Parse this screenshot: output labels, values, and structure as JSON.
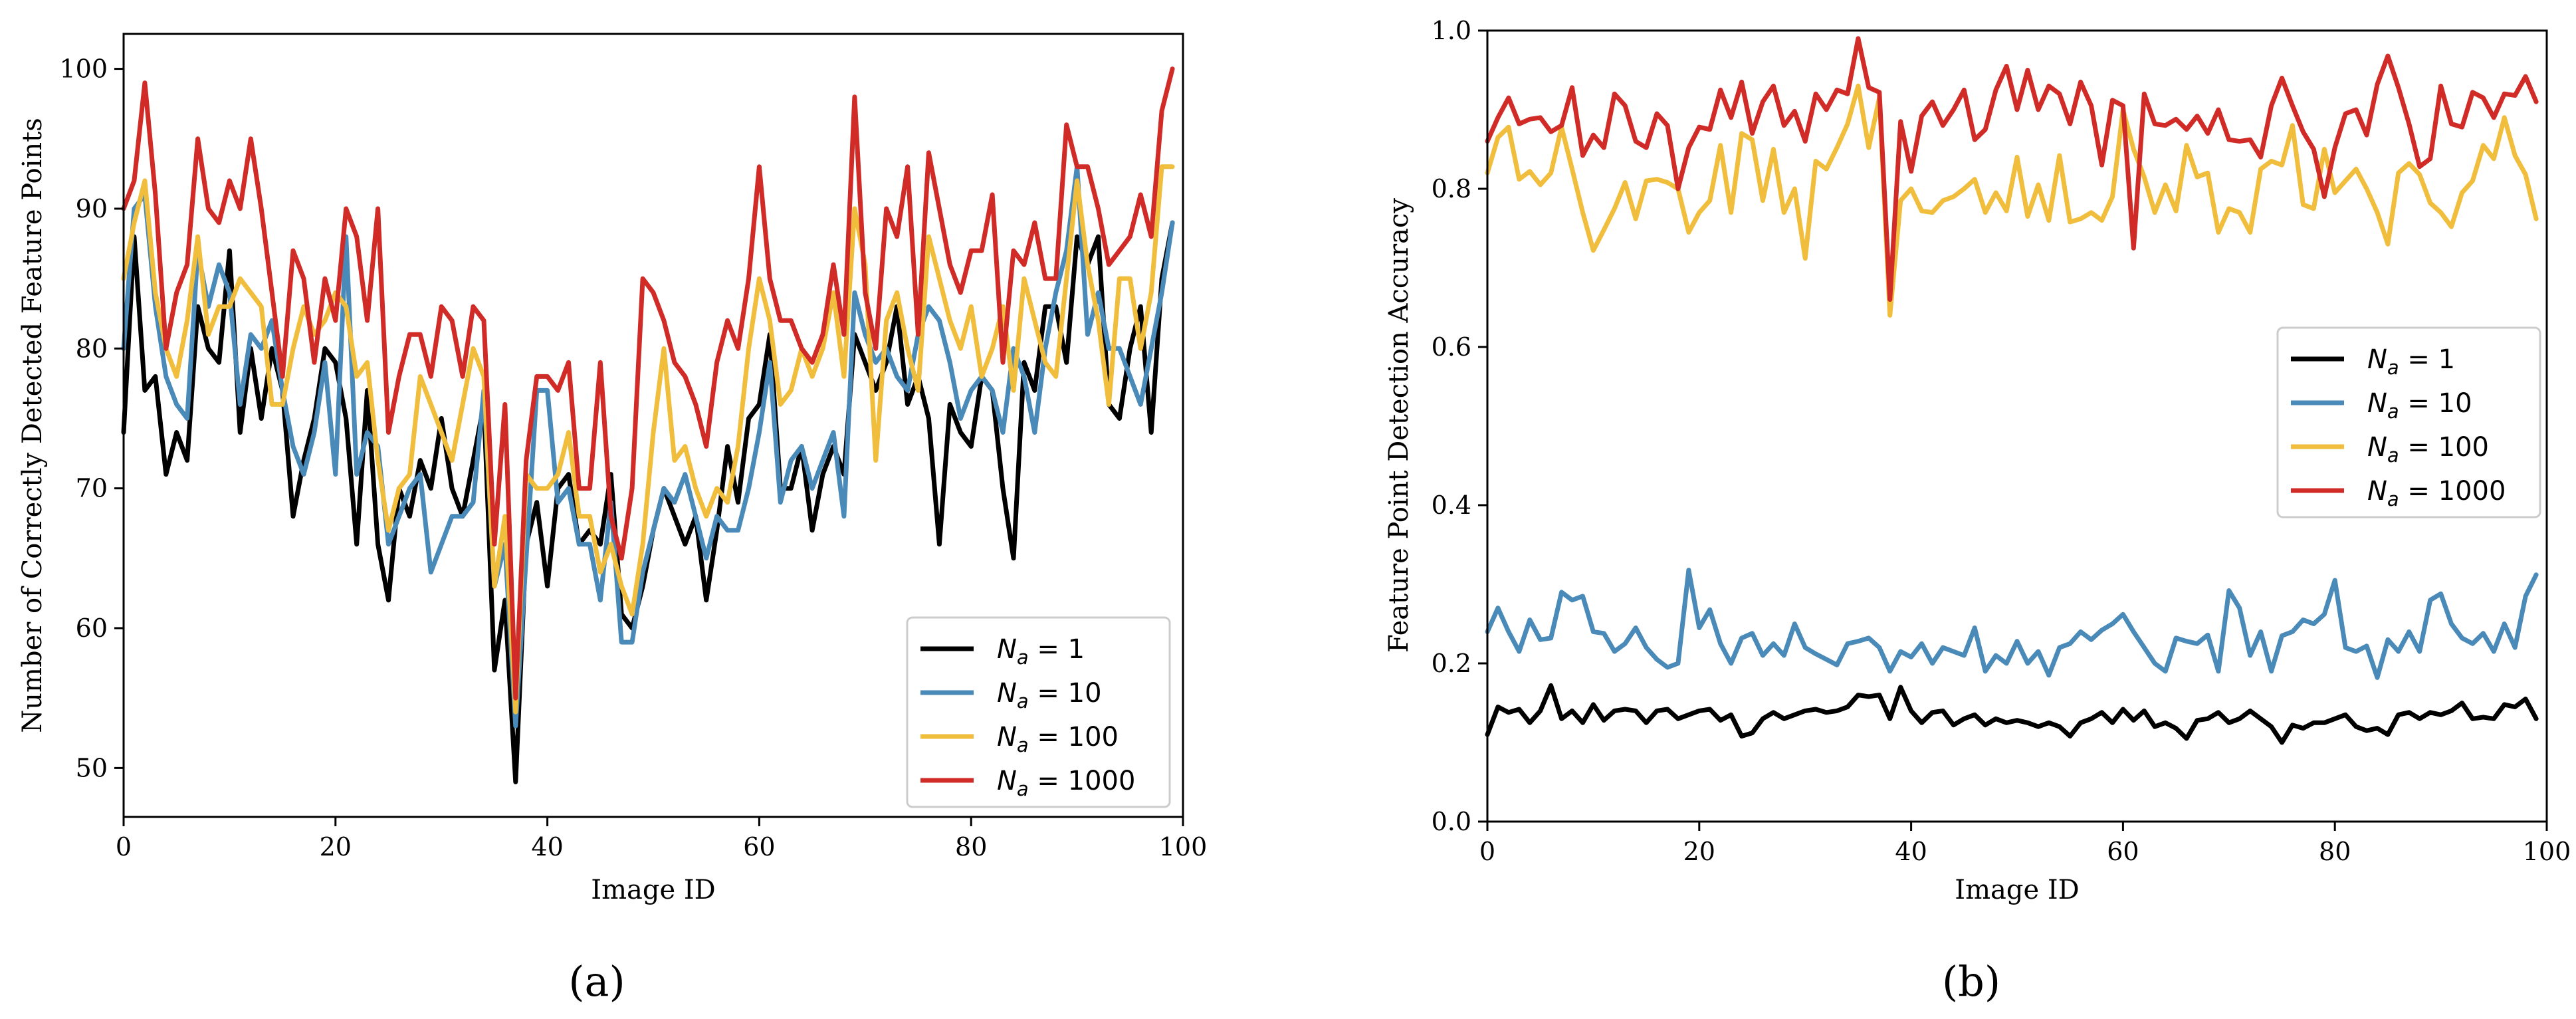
{
  "panels": {
    "a": {
      "caption": "(a)"
    },
    "b": {
      "caption": "(b)"
    }
  },
  "chart_data": [
    {
      "type": "line",
      "panel": "a",
      "title": "",
      "xlabel": "Image ID",
      "ylabel": "Number of Correctly Detected Feature Points",
      "xlim": [
        0,
        100
      ],
      "ylim": [
        46.5,
        102.5
      ],
      "xticks": [
        0,
        20,
        40,
        60,
        80,
        100
      ],
      "yticks": [
        50,
        60,
        70,
        80,
        90,
        100
      ],
      "grid": false,
      "legend_position": "lower-right",
      "x": [
        0,
        1,
        2,
        3,
        4,
        5,
        6,
        7,
        8,
        9,
        10,
        11,
        12,
        13,
        14,
        15,
        16,
        17,
        18,
        19,
        20,
        21,
        22,
        23,
        24,
        25,
        26,
        27,
        28,
        29,
        30,
        31,
        32,
        33,
        34,
        35,
        36,
        37,
        38,
        39,
        40,
        41,
        42,
        43,
        44,
        45,
        46,
        47,
        48,
        49,
        50,
        51,
        52,
        53,
        54,
        55,
        56,
        57,
        58,
        59,
        60,
        61,
        62,
        63,
        64,
        65,
        66,
        67,
        68,
        69,
        70,
        71,
        72,
        73,
        74,
        75,
        76,
        77,
        78,
        79,
        80,
        81,
        82,
        83,
        84,
        85,
        86,
        87,
        88,
        89,
        90,
        91,
        92,
        93,
        94,
        95,
        96,
        97,
        98,
        99
      ],
      "series": [
        {
          "name": "N_a = 1",
          "label_var": "N",
          "label_sub": "a",
          "label_rest": " = 1",
          "color": "#000000",
          "values": [
            74,
            88,
            77,
            78,
            71,
            74,
            72,
            83,
            80,
            79,
            87,
            74,
            80,
            75,
            80,
            77,
            68,
            72,
            75,
            80,
            79,
            75,
            66,
            77,
            66,
            62,
            70,
            68,
            72,
            70,
            75,
            70,
            68,
            72,
            76,
            57,
            62,
            49,
            66,
            69,
            63,
            70,
            71,
            66,
            67,
            66,
            71,
            61,
            60,
            63,
            67,
            70,
            68,
            66,
            68,
            62,
            67,
            73,
            69,
            75,
            76,
            81,
            70,
            70,
            73,
            67,
            71,
            73,
            71,
            81,
            79,
            77,
            79,
            83,
            76,
            78,
            75,
            66,
            76,
            74,
            73,
            78,
            77,
            70,
            65,
            79,
            77,
            83,
            83,
            79,
            88,
            86,
            88,
            76,
            75,
            80,
            83,
            74,
            85,
            89
          ]
        },
        {
          "name": "N_a = 10",
          "label_var": "N",
          "label_sub": "a",
          "label_rest": " = 10",
          "color": "#4a8ab8",
          "values": [
            80,
            90,
            91,
            83,
            78,
            76,
            75,
            87,
            83,
            86,
            84,
            76,
            81,
            80,
            82,
            77,
            73,
            71,
            74,
            79,
            71,
            88,
            71,
            74,
            73,
            66,
            68,
            70,
            71,
            64,
            66,
            68,
            68,
            69,
            77,
            63,
            66,
            53,
            65,
            77,
            77,
            69,
            70,
            66,
            66,
            62,
            69,
            59,
            59,
            64,
            67,
            70,
            69,
            71,
            68,
            65,
            68,
            67,
            67,
            70,
            74,
            79,
            69,
            72,
            73,
            70,
            72,
            74,
            68,
            84,
            81,
            79,
            80,
            78,
            77,
            81,
            83,
            82,
            79,
            75,
            77,
            78,
            77,
            74,
            80,
            78,
            74,
            80,
            84,
            87,
            93,
            81,
            84,
            80,
            80,
            78,
            76,
            80,
            84,
            89
          ]
        },
        {
          "name": "N_a = 100",
          "label_var": "N",
          "label_sub": "a",
          "label_rest": " = 100",
          "color": "#f0be3c",
          "values": [
            85,
            89,
            92,
            84,
            80,
            78,
            82,
            88,
            81,
            83,
            83,
            85,
            84,
            83,
            76,
            76,
            80,
            83,
            81,
            82,
            84,
            83,
            78,
            79,
            72,
            67,
            70,
            71,
            78,
            76,
            74,
            72,
            76,
            80,
            78,
            63,
            68,
            54,
            71,
            70,
            70,
            71,
            74,
            68,
            68,
            64,
            66,
            63,
            61,
            66,
            74,
            80,
            72,
            73,
            70,
            68,
            70,
            69,
            73,
            80,
            85,
            82,
            76,
            77,
            80,
            78,
            80,
            84,
            78,
            90,
            86,
            72,
            82,
            84,
            80,
            77,
            88,
            85,
            82,
            80,
            83,
            78,
            80,
            83,
            77,
            85,
            82,
            79,
            78,
            85,
            92,
            86,
            82,
            76,
            85,
            85,
            80,
            84,
            93,
            93
          ]
        },
        {
          "name": "N_a = 1000",
          "label_var": "N",
          "label_sub": "a",
          "label_rest": " = 1000",
          "color": "#d02b27",
          "values": [
            90,
            92,
            99,
            91,
            80,
            84,
            86,
            95,
            90,
            89,
            92,
            90,
            95,
            90,
            84,
            78,
            87,
            85,
            79,
            85,
            82,
            90,
            88,
            82,
            90,
            74,
            78,
            81,
            81,
            78,
            83,
            82,
            78,
            83,
            82,
            66,
            76,
            55,
            72,
            78,
            78,
            77,
            79,
            70,
            70,
            79,
            68,
            65,
            70,
            85,
            84,
            82,
            79,
            78,
            76,
            73,
            79,
            82,
            80,
            85,
            93,
            85,
            82,
            82,
            80,
            79,
            81,
            86,
            81,
            98,
            84,
            80,
            90,
            88,
            93,
            81,
            94,
            90,
            86,
            84,
            87,
            87,
            91,
            79,
            87,
            86,
            89,
            85,
            85,
            96,
            93,
            93,
            90,
            86,
            87,
            88,
            91,
            88,
            97,
            100
          ]
        }
      ]
    },
    {
      "type": "line",
      "panel": "b",
      "title": "",
      "xlabel": "Image ID",
      "ylabel": "Feature Point Detection Accuracy",
      "xlim": [
        0,
        100
      ],
      "ylim": [
        0.0,
        1.0
      ],
      "xticks": [
        0,
        20,
        40,
        60,
        80,
        100
      ],
      "yticks": [
        "0.0",
        "0.2",
        "0.4",
        "0.6",
        "0.8",
        "1.0"
      ],
      "grid": false,
      "legend_position": "center-right",
      "x": [
        0,
        1,
        2,
        3,
        4,
        5,
        6,
        7,
        8,
        9,
        10,
        11,
        12,
        13,
        14,
        15,
        16,
        17,
        18,
        19,
        20,
        21,
        22,
        23,
        24,
        25,
        26,
        27,
        28,
        29,
        30,
        31,
        32,
        33,
        34,
        35,
        36,
        37,
        38,
        39,
        40,
        41,
        42,
        43,
        44,
        45,
        46,
        47,
        48,
        49,
        50,
        51,
        52,
        53,
        54,
        55,
        56,
        57,
        58,
        59,
        60,
        61,
        62,
        63,
        64,
        65,
        66,
        67,
        68,
        69,
        70,
        71,
        72,
        73,
        74,
        75,
        76,
        77,
        78,
        79,
        80,
        81,
        82,
        83,
        84,
        85,
        86,
        87,
        88,
        89,
        90,
        91,
        92,
        93,
        94,
        95,
        96,
        97,
        98,
        99
      ],
      "series": [
        {
          "name": "N_a = 1",
          "label_var": "N",
          "label_sub": "a",
          "label_rest": " = 1",
          "color": "#000000",
          "values": [
            0.11,
            0.145,
            0.138,
            0.142,
            0.125,
            0.14,
            0.172,
            0.13,
            0.14,
            0.125,
            0.148,
            0.128,
            0.14,
            0.142,
            0.14,
            0.125,
            0.14,
            0.142,
            0.13,
            0.135,
            0.14,
            0.142,
            0.128,
            0.135,
            0.108,
            0.112,
            0.13,
            0.138,
            0.13,
            0.135,
            0.14,
            0.142,
            0.138,
            0.14,
            0.145,
            0.16,
            0.158,
            0.16,
            0.13,
            0.17,
            0.14,
            0.125,
            0.138,
            0.14,
            0.122,
            0.13,
            0.135,
            0.122,
            0.13,
            0.125,
            0.128,
            0.125,
            0.12,
            0.125,
            0.12,
            0.108,
            0.125,
            0.13,
            0.138,
            0.125,
            0.142,
            0.128,
            0.14,
            0.12,
            0.125,
            0.118,
            0.105,
            0.128,
            0.13,
            0.138,
            0.125,
            0.13,
            0.14,
            0.13,
            0.12,
            0.1,
            0.122,
            0.118,
            0.125,
            0.125,
            0.13,
            0.135,
            0.12,
            0.115,
            0.118,
            0.11,
            0.135,
            0.138,
            0.13,
            0.138,
            0.135,
            0.14,
            0.15,
            0.13,
            0.132,
            0.13,
            0.148,
            0.145,
            0.155,
            0.13
          ]
        },
        {
          "name": "N_a = 10",
          "label_var": "N",
          "label_sub": "a",
          "label_rest": " = 10",
          "color": "#4a8ab8",
          "values": [
            0.24,
            0.27,
            0.24,
            0.215,
            0.255,
            0.23,
            0.232,
            0.29,
            0.28,
            0.285,
            0.24,
            0.238,
            0.215,
            0.225,
            0.245,
            0.22,
            0.205,
            0.195,
            0.2,
            0.318,
            0.245,
            0.268,
            0.225,
            0.2,
            0.232,
            0.238,
            0.21,
            0.225,
            0.21,
            0.25,
            0.22,
            0.212,
            0.205,
            0.198,
            0.225,
            0.228,
            0.232,
            0.22,
            0.19,
            0.215,
            0.208,
            0.225,
            0.2,
            0.22,
            0.215,
            0.21,
            0.245,
            0.19,
            0.21,
            0.2,
            0.228,
            0.2,
            0.215,
            0.185,
            0.22,
            0.225,
            0.24,
            0.23,
            0.242,
            0.25,
            0.262,
            0.24,
            0.22,
            0.2,
            0.19,
            0.232,
            0.228,
            0.225,
            0.236,
            0.19,
            0.292,
            0.27,
            0.21,
            0.24,
            0.19,
            0.235,
            0.24,
            0.255,
            0.25,
            0.262,
            0.305,
            0.22,
            0.215,
            0.222,
            0.182,
            0.23,
            0.215,
            0.24,
            0.215,
            0.28,
            0.288,
            0.25,
            0.232,
            0.225,
            0.238,
            0.215,
            0.25,
            0.22,
            0.285,
            0.312
          ]
        },
        {
          "name": "N_a = 100",
          "label_var": "N",
          "label_sub": "a",
          "label_rest": " = 100",
          "color": "#f0be3c",
          "values": [
            0.82,
            0.865,
            0.878,
            0.812,
            0.822,
            0.805,
            0.82,
            0.878,
            0.825,
            0.77,
            0.722,
            0.748,
            0.775,
            0.808,
            0.762,
            0.81,
            0.812,
            0.808,
            0.8,
            0.745,
            0.77,
            0.785,
            0.855,
            0.77,
            0.87,
            0.862,
            0.785,
            0.85,
            0.77,
            0.8,
            0.712,
            0.835,
            0.825,
            0.852,
            0.882,
            0.93,
            0.852,
            0.915,
            0.64,
            0.785,
            0.8,
            0.772,
            0.77,
            0.785,
            0.79,
            0.8,
            0.812,
            0.77,
            0.795,
            0.772,
            0.84,
            0.765,
            0.805,
            0.76,
            0.842,
            0.758,
            0.762,
            0.77,
            0.76,
            0.79,
            0.9,
            0.85,
            0.815,
            0.77,
            0.805,
            0.772,
            0.855,
            0.815,
            0.82,
            0.745,
            0.775,
            0.77,
            0.745,
            0.825,
            0.835,
            0.83,
            0.88,
            0.78,
            0.775,
            0.85,
            0.795,
            0.81,
            0.825,
            0.8,
            0.77,
            0.73,
            0.82,
            0.832,
            0.818,
            0.782,
            0.77,
            0.752,
            0.795,
            0.81,
            0.855,
            0.838,
            0.89,
            0.842,
            0.818,
            0.762
          ]
        },
        {
          "name": "N_a = 1000",
          "label_var": "N",
          "label_sub": "a",
          "label_rest": " = 1000",
          "color": "#d02b27",
          "values": [
            0.86,
            0.89,
            0.915,
            0.882,
            0.888,
            0.89,
            0.872,
            0.88,
            0.928,
            0.842,
            0.868,
            0.852,
            0.92,
            0.905,
            0.86,
            0.852,
            0.895,
            0.88,
            0.8,
            0.852,
            0.878,
            0.875,
            0.925,
            0.89,
            0.935,
            0.87,
            0.91,
            0.93,
            0.88,
            0.898,
            0.86,
            0.92,
            0.9,
            0.925,
            0.92,
            0.99,
            0.928,
            0.922,
            0.66,
            0.885,
            0.822,
            0.892,
            0.91,
            0.88,
            0.9,
            0.925,
            0.862,
            0.875,
            0.925,
            0.955,
            0.9,
            0.95,
            0.9,
            0.93,
            0.92,
            0.882,
            0.935,
            0.905,
            0.83,
            0.912,
            0.905,
            0.725,
            0.92,
            0.882,
            0.88,
            0.888,
            0.875,
            0.892,
            0.87,
            0.9,
            0.862,
            0.86,
            0.862,
            0.84,
            0.905,
            0.94,
            0.905,
            0.872,
            0.85,
            0.79,
            0.852,
            0.895,
            0.9,
            0.868,
            0.932,
            0.968,
            0.928,
            0.882,
            0.828,
            0.838,
            0.93,
            0.882,
            0.878,
            0.922,
            0.915,
            0.89,
            0.92,
            0.918,
            0.942,
            0.91
          ]
        }
      ]
    }
  ]
}
